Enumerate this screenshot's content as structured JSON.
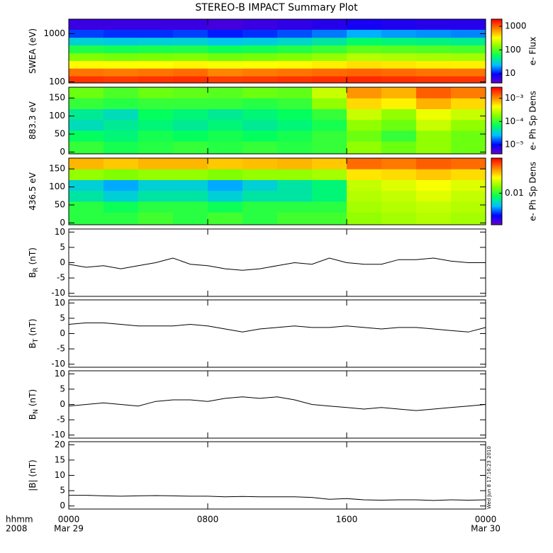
{
  "title": "STEREO-B IMPACT Summary Plot",
  "timestamp": "Wed Jun  8 17:16:23 2010",
  "xaxis": {
    "label_lines": [
      "hhmm",
      "2008"
    ],
    "xlim": [
      0,
      24
    ],
    "xticks": [
      {
        "value": 0,
        "label": "0000"
      },
      {
        "value": 8,
        "label": "0800"
      },
      {
        "value": 16,
        "label": "1600"
      },
      {
        "value": 24,
        "label": "0000"
      }
    ],
    "dates": [
      {
        "value": 0,
        "label": "Mar 29"
      },
      {
        "value": 24,
        "label": "Mar 30"
      }
    ]
  },
  "colormap": [
    "#6a00c8",
    "#0000ff",
    "#00c0ff",
    "#00ff60",
    "#80ff00",
    "#ffff00",
    "#ff8000",
    "#ff0000"
  ],
  "chart_data": [
    {
      "type": "heatmap",
      "ylabel": "SWEA (eV)",
      "log": true,
      "ylim": [
        95,
        2000
      ],
      "yticks": [
        100,
        1000
      ],
      "x": [
        1,
        3,
        5,
        7,
        9,
        11,
        13,
        15,
        17,
        19,
        21,
        23
      ],
      "y": [
        110,
        160,
        230,
        330,
        480,
        700,
        1000,
        1500
      ],
      "zlabel": "e- Flux",
      "zlim": [
        4,
        2000
      ],
      "zticks": [
        10,
        100,
        1000
      ],
      "z": [
        [
          1400,
          1350,
          1400,
          1450,
          1300,
          1350,
          1400,
          1450,
          1500,
          1450,
          1400,
          1400
        ],
        [
          900,
          850,
          900,
          950,
          800,
          850,
          900,
          950,
          1000,
          950,
          900,
          900
        ],
        [
          350,
          330,
          340,
          360,
          320,
          330,
          350,
          380,
          420,
          400,
          380,
          370
        ],
        [
          140,
          130,
          135,
          140,
          125,
          130,
          140,
          160,
          200,
          190,
          180,
          175
        ],
        [
          70,
          65,
          68,
          70,
          62,
          65,
          72,
          85,
          110,
          105,
          100,
          95
        ],
        [
          30,
          28,
          29,
          30,
          26,
          28,
          32,
          40,
          55,
          50,
          48,
          45
        ],
        [
          13,
          12,
          12,
          13,
          11,
          12,
          14,
          17,
          22,
          20,
          19,
          18
        ],
        [
          6,
          6,
          6,
          6,
          5.5,
          6,
          6.5,
          7,
          8,
          7.5,
          7,
          7
        ]
      ]
    },
    {
      "type": "heatmap",
      "ylabel": "883.3 eV",
      "ylim": [
        -5,
        180
      ],
      "yticks": [
        0,
        50,
        100,
        150
      ],
      "x": [
        1,
        3,
        5,
        7,
        9,
        11,
        13,
        15,
        17,
        19,
        21,
        23
      ],
      "y": [
        15,
        45,
        75,
        105,
        135,
        165
      ],
      "zlabel": "e- Ph Sp Dens",
      "zlim": [
        4e-06,
        0.003
      ],
      "zticks": [
        {
          "value": 1e-05,
          "label": "10⁻⁵"
        },
        {
          "value": 0.0001,
          "label": "10⁻⁴"
        },
        {
          "value": 0.001,
          "label": "10⁻³"
        }
      ],
      "z": [
        [
          0.0001,
          8e-05,
          9e-05,
          0.0001,
          9e-05,
          0.0001,
          9e-05,
          0.0001,
          0.0002,
          0.00015,
          0.0002,
          0.00015
        ],
        [
          7e-05,
          6e-05,
          8e-05,
          7e-05,
          8e-05,
          7e-05,
          8e-05,
          0.0001,
          0.00015,
          0.0001,
          0.0002,
          0.00015
        ],
        [
          4e-05,
          5e-05,
          6e-05,
          5e-05,
          6e-05,
          5e-05,
          6e-05,
          8e-05,
          0.0002,
          0.00015,
          0.0003,
          0.0002
        ],
        [
          5e-05,
          4e-05,
          7e-05,
          6e-05,
          5e-05,
          6e-05,
          7e-05,
          0.0001,
          0.0003,
          0.0002,
          0.0004,
          0.0003
        ],
        [
          0.0001,
          9e-05,
          0.0001,
          0.0001,
          0.0001,
          9e-05,
          0.0001,
          0.0002,
          0.0006,
          0.0005,
          0.0008,
          0.0006
        ],
        [
          0.00015,
          0.00012,
          0.00015,
          0.00014,
          0.00013,
          0.00015,
          0.00014,
          0.0003,
          0.001,
          0.0008,
          0.0015,
          0.0012
        ]
      ]
    },
    {
      "type": "heatmap",
      "ylabel": "436.5 eV",
      "ylim": [
        -5,
        180
      ],
      "yticks": [
        0,
        50,
        100,
        150
      ],
      "x": [
        1,
        3,
        5,
        7,
        9,
        11,
        13,
        15,
        17,
        19,
        21,
        23
      ],
      "y": [
        15,
        45,
        75,
        105,
        135,
        165
      ],
      "zlabel": "e- Ph Sp Dens",
      "zlim": [
        0.002,
        0.06
      ],
      "zticks": [
        0.01
      ],
      "z": [
        [
          0.01,
          0.01,
          0.011,
          0.01,
          0.011,
          0.01,
          0.011,
          0.011,
          0.015,
          0.016,
          0.017,
          0.016
        ],
        [
          0.01,
          0.009,
          0.01,
          0.01,
          0.009,
          0.01,
          0.01,
          0.01,
          0.016,
          0.017,
          0.018,
          0.017
        ],
        [
          0.007,
          0.006,
          0.007,
          0.007,
          0.006,
          0.007,
          0.007,
          0.008,
          0.017,
          0.018,
          0.02,
          0.018
        ],
        [
          0.006,
          0.005,
          0.006,
          0.006,
          0.005,
          0.006,
          0.007,
          0.008,
          0.018,
          0.02,
          0.022,
          0.02
        ],
        [
          0.015,
          0.014,
          0.015,
          0.015,
          0.014,
          0.015,
          0.015,
          0.016,
          0.025,
          0.026,
          0.028,
          0.026
        ],
        [
          0.03,
          0.028,
          0.03,
          0.03,
          0.028,
          0.029,
          0.03,
          0.028,
          0.04,
          0.038,
          0.042,
          0.04
        ]
      ]
    },
    {
      "type": "line",
      "ylabel": "B",
      "ylabel_sub": "R",
      "ylabel_unit": "(nT)",
      "ylim": [
        -11,
        11
      ],
      "yticks": [
        -10,
        -5,
        0,
        5,
        10
      ],
      "color": "#000000",
      "x": [
        0,
        1,
        2,
        3,
        4,
        5,
        6,
        7,
        8,
        9,
        10,
        11,
        12,
        13,
        14,
        15,
        16,
        17,
        18,
        19,
        20,
        21,
        22,
        23,
        24
      ],
      "values": [
        -0.5,
        -1.5,
        -1,
        -2,
        -1,
        0,
        1.5,
        -0.5,
        -1,
        -2,
        -2.5,
        -2,
        -1,
        0,
        -0.5,
        1.5,
        0,
        -0.5,
        -0.5,
        1,
        1,
        1.5,
        0.5,
        0,
        0
      ]
    },
    {
      "type": "line",
      "ylabel": "B",
      "ylabel_sub": "T",
      "ylabel_unit": "(nT)",
      "ylim": [
        -11,
        11
      ],
      "yticks": [
        -10,
        -5,
        0,
        5,
        10
      ],
      "color": "#000000",
      "x": [
        0,
        1,
        2,
        3,
        4,
        5,
        6,
        7,
        8,
        9,
        10,
        11,
        12,
        13,
        14,
        15,
        16,
        17,
        18,
        19,
        20,
        21,
        22,
        23,
        24
      ],
      "values": [
        3,
        3.5,
        3.5,
        3,
        2.5,
        2.5,
        2.5,
        3,
        2.5,
        1.5,
        0.5,
        1.5,
        2,
        2.5,
        2,
        2,
        2.5,
        2,
        1.5,
        2,
        2,
        1.5,
        1,
        0.5,
        2
      ]
    },
    {
      "type": "line",
      "ylabel": "B",
      "ylabel_sub": "N",
      "ylabel_unit": "(nT)",
      "ylim": [
        -11,
        11
      ],
      "yticks": [
        -10,
        -5,
        0,
        5,
        10
      ],
      "color": "#000000",
      "x": [
        0,
        1,
        2,
        3,
        4,
        5,
        6,
        7,
        8,
        9,
        10,
        11,
        12,
        13,
        14,
        15,
        16,
        17,
        18,
        19,
        20,
        21,
        22,
        23,
        24
      ],
      "values": [
        -0.5,
        0,
        0.5,
        0,
        -0.5,
        1,
        1.5,
        1.5,
        1,
        2,
        2.5,
        2,
        2.5,
        1.5,
        0,
        -0.5,
        -1,
        -1.5,
        -1,
        -1.5,
        -2,
        -1.5,
        -1,
        -0.5,
        0
      ]
    },
    {
      "type": "line",
      "ylabel": "|B| (nT)",
      "ylim": [
        -1,
        21
      ],
      "yticks": [
        0,
        5,
        10,
        15,
        20
      ],
      "color": "#000000",
      "x": [
        0,
        1,
        2,
        3,
        4,
        5,
        6,
        7,
        8,
        9,
        10,
        11,
        12,
        13,
        14,
        15,
        16,
        17,
        18,
        19,
        20,
        21,
        22,
        23,
        24
      ],
      "values": [
        3.5,
        3.5,
        3.3,
        3.2,
        3.3,
        3.4,
        3.3,
        3.2,
        3.2,
        3,
        3.1,
        3,
        3,
        3,
        2.8,
        2.2,
        2.4,
        2,
        1.9,
        2,
        2,
        1.8,
        2,
        1.9,
        2
      ]
    }
  ]
}
